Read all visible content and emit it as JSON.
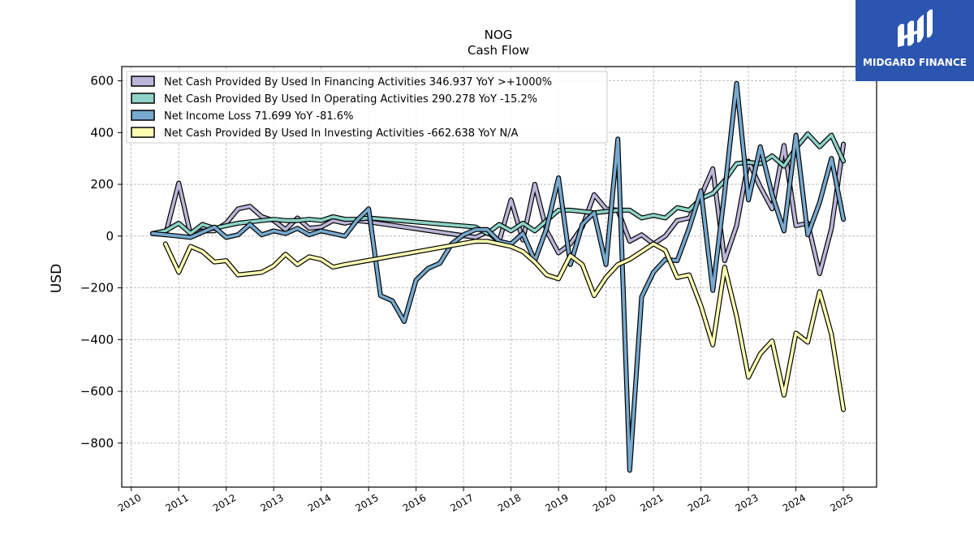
{
  "brand": {
    "name": "MIDGARD FINANCE",
    "color": "#2b56b0"
  },
  "chart_data": {
    "type": "line",
    "title": "NOG",
    "subtitle": "Cash Flow",
    "ylabel": "USD",
    "xlabel": "",
    "xlim": [
      2009.8,
      2025.7
    ],
    "ylim": [
      -970,
      655
    ],
    "grid": true,
    "legend_position": "top-left",
    "x_ticks": [
      "2010",
      "2011",
      "2012",
      "2013",
      "2014",
      "2015",
      "2016",
      "2017",
      "2018",
      "2019",
      "2020",
      "2021",
      "2022",
      "2023",
      "2024",
      "2025"
    ],
    "y_ticks": [
      -800,
      -600,
      -400,
      -200,
      0,
      200,
      400,
      600
    ],
    "y_tick_labels": [
      "−800",
      "−600",
      "−400",
      "−200",
      "0",
      "200",
      "400",
      "600"
    ],
    "series": [
      {
        "name": "Net Cash Provided By Used In Financing Activities  346.937 YoY >+1000%",
        "color": "#bab6d8",
        "points": [
          [
            2010.45,
            10
          ],
          [
            2010.72,
            5
          ],
          [
            2011.0,
            205
          ],
          [
            2011.25,
            5
          ],
          [
            2011.5,
            20
          ],
          [
            2011.75,
            20
          ],
          [
            2012.0,
            50
          ],
          [
            2012.25,
            105
          ],
          [
            2012.5,
            115
          ],
          [
            2012.75,
            75
          ],
          [
            2013.0,
            60
          ],
          [
            2013.25,
            25
          ],
          [
            2013.5,
            70
          ],
          [
            2013.75,
            30
          ],
          [
            2014.0,
            35
          ],
          [
            2014.25,
            60
          ],
          [
            2014.5,
            50
          ],
          [
            2014.75,
            60
          ],
          [
            2015.0,
            55
          ],
          [
            2017.25,
            -5
          ],
          [
            2017.5,
            15
          ],
          [
            2017.75,
            -20
          ],
          [
            2018.0,
            140
          ],
          [
            2018.25,
            -15
          ],
          [
            2018.5,
            200
          ],
          [
            2018.75,
            20
          ],
          [
            2019.0,
            -65
          ],
          [
            2019.25,
            -30
          ],
          [
            2019.5,
            35
          ],
          [
            2019.75,
            160
          ],
          [
            2020.0,
            105
          ],
          [
            2020.25,
            100
          ],
          [
            2020.5,
            -20
          ],
          [
            2020.75,
            5
          ],
          [
            2021.0,
            -30
          ],
          [
            2021.25,
            0
          ],
          [
            2021.5,
            60
          ],
          [
            2021.75,
            70
          ],
          [
            2022.0,
            155
          ],
          [
            2022.25,
            260
          ],
          [
            2022.5,
            -95
          ],
          [
            2022.75,
            40
          ],
          [
            2023.0,
            290
          ],
          [
            2023.25,
            190
          ],
          [
            2023.5,
            105
          ],
          [
            2023.75,
            350
          ],
          [
            2024.0,
            40
          ],
          [
            2024.25,
            50
          ],
          [
            2024.5,
            -145
          ],
          [
            2024.75,
            30
          ],
          [
            2025.0,
            355
          ]
        ]
      },
      {
        "name": "Net Cash Provided By Used In Operating Activities  290.278 YoY -15.2%",
        "color": "#8dd3c7",
        "points": [
          [
            2010.45,
            10
          ],
          [
            2010.72,
            20
          ],
          [
            2011.0,
            50
          ],
          [
            2011.25,
            10
          ],
          [
            2011.5,
            45
          ],
          [
            2011.75,
            30
          ],
          [
            2012.0,
            40
          ],
          [
            2012.25,
            50
          ],
          [
            2012.5,
            55
          ],
          [
            2012.75,
            60
          ],
          [
            2013.0,
            65
          ],
          [
            2013.25,
            60
          ],
          [
            2013.5,
            60
          ],
          [
            2013.75,
            65
          ],
          [
            2014.0,
            60
          ],
          [
            2014.25,
            75
          ],
          [
            2014.5,
            65
          ],
          [
            2014.75,
            65
          ],
          [
            2015.0,
            70
          ],
          [
            2017.25,
            35
          ],
          [
            2017.5,
            10
          ],
          [
            2017.75,
            45
          ],
          [
            2018.0,
            20
          ],
          [
            2018.25,
            50
          ],
          [
            2018.5,
            20
          ],
          [
            2018.75,
            60
          ],
          [
            2019.0,
            100
          ],
          [
            2019.25,
            100
          ],
          [
            2019.5,
            95
          ],
          [
            2019.75,
            90
          ],
          [
            2020.0,
            95
          ],
          [
            2020.25,
            100
          ],
          [
            2020.5,
            100
          ],
          [
            2020.75,
            70
          ],
          [
            2021.0,
            80
          ],
          [
            2021.25,
            70
          ],
          [
            2021.5,
            110
          ],
          [
            2021.75,
            100
          ],
          [
            2022.0,
            145
          ],
          [
            2022.25,
            165
          ],
          [
            2022.5,
            215
          ],
          [
            2022.75,
            280
          ],
          [
            2023.0,
            285
          ],
          [
            2023.25,
            280
          ],
          [
            2023.5,
            310
          ],
          [
            2023.75,
            270
          ],
          [
            2024.0,
            340
          ],
          [
            2024.25,
            395
          ],
          [
            2024.5,
            345
          ],
          [
            2024.75,
            390
          ],
          [
            2025.0,
            290
          ]
        ]
      },
      {
        "name": "Net Income Loss  71.699 YoY -81.6%",
        "color": "#76a9cf",
        "points": [
          [
            2010.45,
            10
          ],
          [
            2010.72,
            5
          ],
          [
            2011.0,
            0
          ],
          [
            2011.25,
            -5
          ],
          [
            2011.5,
            15
          ],
          [
            2011.75,
            35
          ],
          [
            2012.0,
            -5
          ],
          [
            2012.25,
            5
          ],
          [
            2012.5,
            45
          ],
          [
            2012.75,
            5
          ],
          [
            2013.0,
            20
          ],
          [
            2013.25,
            10
          ],
          [
            2013.5,
            30
          ],
          [
            2013.75,
            5
          ],
          [
            2014.0,
            20
          ],
          [
            2014.25,
            10
          ],
          [
            2014.5,
            0
          ],
          [
            2014.75,
            60
          ],
          [
            2015.0,
            105
          ],
          [
            2015.25,
            -230
          ],
          [
            2015.5,
            -250
          ],
          [
            2015.75,
            -330
          ],
          [
            2016.0,
            -170
          ],
          [
            2016.25,
            -125
          ],
          [
            2016.5,
            -105
          ],
          [
            2016.75,
            -30
          ],
          [
            2017.0,
            5
          ],
          [
            2017.25,
            25
          ],
          [
            2017.5,
            25
          ],
          [
            2017.75,
            -20
          ],
          [
            2018.0,
            -30
          ],
          [
            2018.25,
            10
          ],
          [
            2018.5,
            -95
          ],
          [
            2018.75,
            30
          ],
          [
            2019.0,
            225
          ],
          [
            2019.25,
            -110
          ],
          [
            2019.5,
            45
          ],
          [
            2019.75,
            90
          ],
          [
            2020.0,
            -110
          ],
          [
            2020.25,
            375
          ],
          [
            2020.5,
            -905
          ],
          [
            2020.75,
            -235
          ],
          [
            2021.0,
            -140
          ],
          [
            2021.25,
            -90
          ],
          [
            2021.5,
            -95
          ],
          [
            2021.75,
            30
          ],
          [
            2022.0,
            175
          ],
          [
            2022.25,
            -210
          ],
          [
            2022.5,
            170
          ],
          [
            2022.75,
            590
          ],
          [
            2023.0,
            140
          ],
          [
            2023.25,
            345
          ],
          [
            2023.5,
            160
          ],
          [
            2023.75,
            20
          ],
          [
            2024.0,
            390
          ],
          [
            2024.25,
            5
          ],
          [
            2024.5,
            130
          ],
          [
            2024.75,
            300
          ],
          [
            2025.0,
            65
          ]
        ]
      },
      {
        "name": "Net Cash Provided By Used In Investing Activities  -662.638 YoY N/A",
        "color": "#ffffb3",
        "points": [
          [
            2010.72,
            -30
          ],
          [
            2011.0,
            -140
          ],
          [
            2011.25,
            -40
          ],
          [
            2011.5,
            -60
          ],
          [
            2011.75,
            -100
          ],
          [
            2012.0,
            -95
          ],
          [
            2012.25,
            -150
          ],
          [
            2012.5,
            -145
          ],
          [
            2012.75,
            -140
          ],
          [
            2013.0,
            -115
          ],
          [
            2013.25,
            -70
          ],
          [
            2013.5,
            -110
          ],
          [
            2013.75,
            -80
          ],
          [
            2014.0,
            -90
          ],
          [
            2014.25,
            -120
          ],
          [
            2014.5,
            -110
          ],
          [
            2017.25,
            -20
          ],
          [
            2017.5,
            -20
          ],
          [
            2017.75,
            -30
          ],
          [
            2018.0,
            -40
          ],
          [
            2018.25,
            -60
          ],
          [
            2018.5,
            -100
          ],
          [
            2018.75,
            -150
          ],
          [
            2019.0,
            -165
          ],
          [
            2019.25,
            -75
          ],
          [
            2019.5,
            -110
          ],
          [
            2019.75,
            -230
          ],
          [
            2020.0,
            -160
          ],
          [
            2020.25,
            -110
          ],
          [
            2020.5,
            -90
          ],
          [
            2020.75,
            -60
          ],
          [
            2021.0,
            -30
          ],
          [
            2021.25,
            -55
          ],
          [
            2021.5,
            -160
          ],
          [
            2021.75,
            -150
          ],
          [
            2022.0,
            -270
          ],
          [
            2022.25,
            -420
          ],
          [
            2022.5,
            -120
          ],
          [
            2022.75,
            -310
          ],
          [
            2023.0,
            -545
          ],
          [
            2023.25,
            -455
          ],
          [
            2023.5,
            -405
          ],
          [
            2023.75,
            -615
          ],
          [
            2024.0,
            -375
          ],
          [
            2024.25,
            -410
          ],
          [
            2024.5,
            -215
          ],
          [
            2024.75,
            -380
          ],
          [
            2025.0,
            -670
          ]
        ]
      }
    ]
  }
}
